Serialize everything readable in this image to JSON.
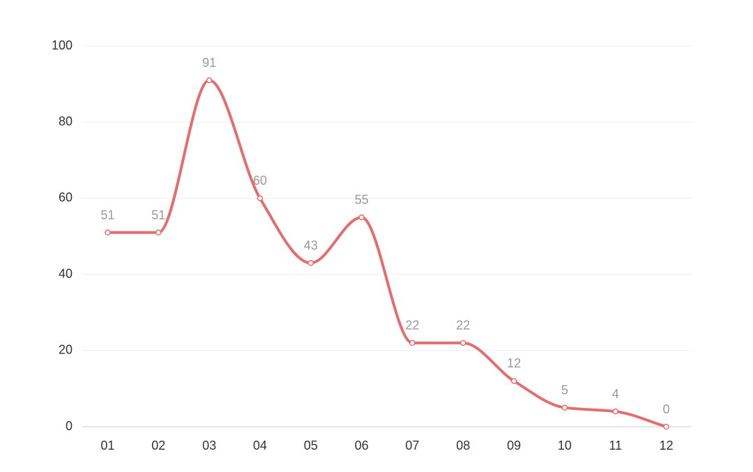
{
  "chart_data": {
    "type": "line",
    "categories": [
      "01",
      "02",
      "03",
      "04",
      "05",
      "06",
      "07",
      "08",
      "09",
      "10",
      "11",
      "12"
    ],
    "values": [
      51,
      51,
      91,
      60,
      43,
      55,
      22,
      22,
      12,
      5,
      4,
      0
    ],
    "color": "#e46d6f",
    "smooth": true,
    "ylim": [
      0,
      100
    ],
    "yticks": [
      0,
      20,
      40,
      60,
      80,
      100
    ],
    "grid": true
  }
}
